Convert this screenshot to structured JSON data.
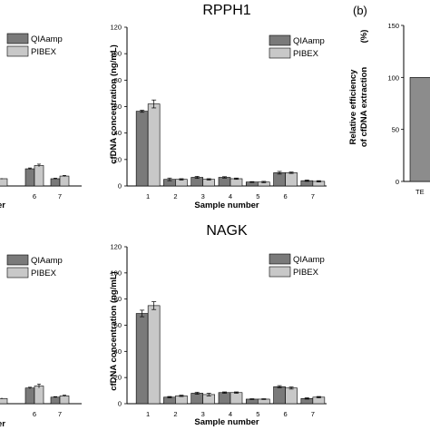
{
  "colors": {
    "qiaamp": "#7a7a7a",
    "pibex": "#c8c8c8",
    "teb": "#8c8c8c",
    "edge": "#000000"
  },
  "panels": {
    "b": "(b)"
  },
  "chart_data": [
    {
      "id": "left-top",
      "type": "bar",
      "categories": [
        "6",
        "7"
      ],
      "xlabel": "er",
      "legend": {
        "placement": "top-left"
      },
      "series": [
        {
          "name": "QIAamp",
          "values": [
            13,
            5.5
          ],
          "errors": [
            0.6,
            0.4
          ]
        },
        {
          "name": "PIBEX",
          "values": [
            15.5,
            7.5
          ],
          "errors": [
            1.0,
            0.5
          ]
        }
      ],
      "extra_bar": {
        "value": 5.5,
        "error": 0.4
      },
      "ylim": [
        0,
        120
      ]
    },
    {
      "id": "rpph1",
      "type": "bar",
      "title": "RPPH1",
      "categories": [
        "1",
        "2",
        "3",
        "4",
        "5",
        "6",
        "7"
      ],
      "xlabel": "Sample number",
      "ylabel": "cfDNA concentration (ng/mL)",
      "ylim": [
        0,
        120
      ],
      "yticks": [
        0,
        20,
        40,
        60,
        80,
        100,
        120
      ],
      "legend": {
        "placement": "top-right"
      },
      "series": [
        {
          "name": "QIAamp",
          "values": [
            56.5,
            5,
            6.5,
            6.5,
            3,
            10,
            4
          ],
          "errors": [
            0.8,
            1.0,
            0.8,
            0.5,
            0.3,
            1.0,
            0.5
          ]
        },
        {
          "name": "PIBEX",
          "values": [
            62,
            5,
            5,
            5.5,
            3,
            10,
            3.5
          ],
          "errors": [
            3.0,
            0.5,
            0.5,
            0.5,
            0.5,
            0.5,
            0.5
          ]
        }
      ]
    },
    {
      "id": "left-bottom",
      "type": "bar",
      "categories": [
        "6",
        "7"
      ],
      "xlabel": "er",
      "legend": {
        "placement": "top-left"
      },
      "series": [
        {
          "name": "QIAamp",
          "values": [
            12,
            5
          ],
          "errors": [
            0.6,
            0.4
          ]
        },
        {
          "name": "PIBEX",
          "values": [
            13.5,
            6
          ],
          "errors": [
            1.5,
            0.5
          ]
        }
      ],
      "extra_bar": {
        "value": 4,
        "error": 0.5
      },
      "ylim": [
        0,
        120
      ]
    },
    {
      "id": "nagk",
      "type": "bar",
      "title": "NAGK",
      "categories": [
        "1",
        "2",
        "3",
        "4",
        "5",
        "6",
        "7"
      ],
      "xlabel": "Sample number",
      "ylabel": "cfDNA concentration (ng/mL)",
      "ylim": [
        0,
        120
      ],
      "yticks": [
        0,
        20,
        40,
        60,
        80,
        100,
        120
      ],
      "legend": {
        "placement": "top-right"
      },
      "series": [
        {
          "name": "QIAamp",
          "values": [
            69,
            5,
            8,
            8.5,
            3.5,
            13,
            4
          ],
          "errors": [
            2.5,
            0.5,
            0.8,
            0.5,
            0.3,
            0.8,
            0.5
          ]
        },
        {
          "name": "PIBEX",
          "values": [
            75,
            6,
            7,
            8.5,
            3.5,
            12,
            5
          ],
          "errors": [
            3.0,
            0.5,
            1.0,
            0.5,
            0.3,
            0.8,
            0.5
          ]
        }
      ]
    },
    {
      "id": "panel-b",
      "type": "bar",
      "categories": [
        "TE"
      ],
      "ylabel": "Relative efficiency of cfDNA extraction  (%)",
      "ylabel_lines": [
        "Relative efficiency",
        "of cfDNA extraction"
      ],
      "ylabel_unit": "(%)",
      "ylim": [
        0,
        150
      ],
      "yticks": [
        0,
        50,
        100,
        150
      ],
      "values": [
        100
      ]
    }
  ]
}
